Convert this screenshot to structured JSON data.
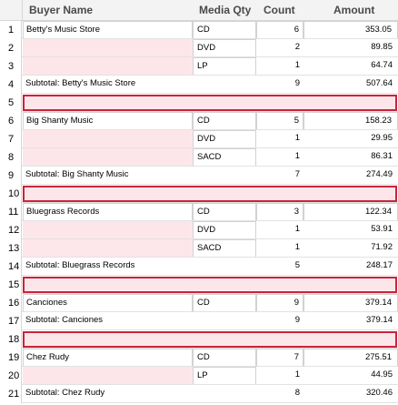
{
  "columns": {
    "buyer": "Buyer Name",
    "media": "Media Qty",
    "count": "Count",
    "amount": "Amount"
  },
  "rows": [
    {
      "n": "1",
      "buyer": "Betty's Music Store",
      "media": "CD",
      "count": "6",
      "amount": "353.05",
      "type": "first"
    },
    {
      "n": "2",
      "buyer": "",
      "media": "DVD",
      "count": "2",
      "amount": "89.85",
      "type": "detail"
    },
    {
      "n": "3",
      "buyer": "",
      "media": "LP",
      "count": "1",
      "amount": "64.74",
      "type": "detail"
    },
    {
      "n": "4",
      "buyer": "Subtotal: Betty's Music Store",
      "media": "",
      "count": "9",
      "amount": "507.64",
      "type": "subtotal"
    },
    {
      "n": "5",
      "buyer": "",
      "media": "",
      "count": "",
      "amount": "",
      "type": "blank"
    },
    {
      "n": "6",
      "buyer": "Big Shanty Music",
      "media": "CD",
      "count": "5",
      "amount": "158.23",
      "type": "first"
    },
    {
      "n": "7",
      "buyer": "",
      "media": "DVD",
      "count": "1",
      "amount": "29.95",
      "type": "detail"
    },
    {
      "n": "8",
      "buyer": "",
      "media": "SACD",
      "count": "1",
      "amount": "86.31",
      "type": "detail"
    },
    {
      "n": "9",
      "buyer": "Subtotal: Big Shanty Music",
      "media": "",
      "count": "7",
      "amount": "274.49",
      "type": "subtotal"
    },
    {
      "n": "10",
      "buyer": "",
      "media": "",
      "count": "",
      "amount": "",
      "type": "blank"
    },
    {
      "n": "11",
      "buyer": "Bluegrass Records",
      "media": "CD",
      "count": "3",
      "amount": "122.34",
      "type": "first"
    },
    {
      "n": "12",
      "buyer": "",
      "media": "DVD",
      "count": "1",
      "amount": "53.91",
      "type": "detail"
    },
    {
      "n": "13",
      "buyer": "",
      "media": "SACD",
      "count": "1",
      "amount": "71.92",
      "type": "detail"
    },
    {
      "n": "14",
      "buyer": "Subtotal: Bluegrass Records",
      "media": "",
      "count": "5",
      "amount": "248.17",
      "type": "subtotal"
    },
    {
      "n": "15",
      "buyer": "",
      "media": "",
      "count": "",
      "amount": "",
      "type": "blank"
    },
    {
      "n": "16",
      "buyer": "Canciones",
      "media": "CD",
      "count": "9",
      "amount": "379.14",
      "type": "first"
    },
    {
      "n": "17",
      "buyer": "Subtotal: Canciones",
      "media": "",
      "count": "9",
      "amount": "379.14",
      "type": "subtotal"
    },
    {
      "n": "18",
      "buyer": "",
      "media": "",
      "count": "",
      "amount": "",
      "type": "blank"
    },
    {
      "n": "19",
      "buyer": "Chez Rudy",
      "media": "CD",
      "count": "7",
      "amount": "275.51",
      "type": "first"
    },
    {
      "n": "20",
      "buyer": "",
      "media": "LP",
      "count": "1",
      "amount": "44.95",
      "type": "detail"
    },
    {
      "n": "21",
      "buyer": "Subtotal: Chez Rudy",
      "media": "",
      "count": "8",
      "amount": "320.46",
      "type": "subtotal"
    }
  ],
  "colors": {
    "highlight_fill": "#fde6ea",
    "highlight_border": "#c8243a",
    "header_bg": "#f3f3f3"
  }
}
